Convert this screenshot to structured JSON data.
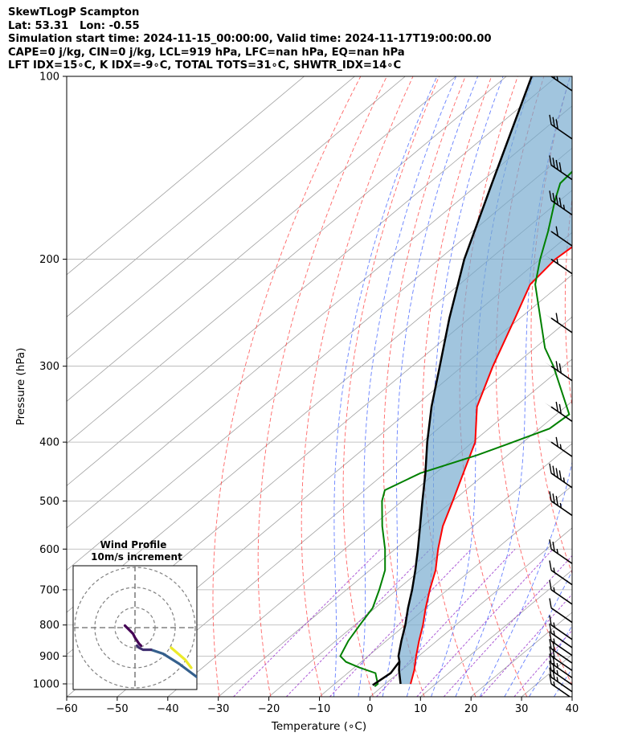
{
  "header": {
    "line1": "SkewTLogP Scampton",
    "line2": "Lat: 53.31   Lon: -0.55",
    "line3": "Simulation start time: 2024-11-15_00:00:00, Valid time: 2024-11-17T19:00:00.00",
    "line4": "CAPE=0 j/kg, CIN=0 j/kg, LCL=919 hPa, LFC=nan hPa, EQ=nan hPa",
    "line5": "LFT IDX=15∘C, K IDX=-9∘C, TOTAL TOTS=31∘C, SHWTR_IDX=14∘C"
  },
  "colors": {
    "temperature": "#ff0000",
    "dewpoint": "#008000",
    "parcel": "#000000",
    "cape_fill": "#74a9cf",
    "dry_adiabat": "#ff3333",
    "moist_adiabat": "#3355ff",
    "mixing_ratio": "#9933cc",
    "isotherm": "#a0a0a0",
    "isobar": "#b0b0b0"
  },
  "chart_data": {
    "type": "line",
    "title": "",
    "xlabel": "Temperature (∘C)",
    "ylabel": "Pressure (hPa)",
    "xlim": [
      -60,
      40
    ],
    "ylim": [
      1050,
      100
    ],
    "y_scale": "log",
    "x_ticks": [
      -60,
      -50,
      -40,
      -30,
      -20,
      -10,
      0,
      10,
      20,
      30,
      40
    ],
    "y_ticks": [
      1000,
      900,
      800,
      700,
      600,
      500,
      400,
      300,
      200,
      100
    ],
    "grid": true,
    "series": [
      {
        "key": "temperature",
        "points": [
          [
            1000,
            5
          ],
          [
            950,
            2.5
          ],
          [
            900,
            -0.5
          ],
          [
            850,
            -3.5
          ],
          [
            800,
            -6.5
          ],
          [
            750,
            -10
          ],
          [
            700,
            -13.5
          ],
          [
            650,
            -17
          ],
          [
            600,
            -21.5
          ],
          [
            550,
            -26
          ],
          [
            500,
            -30
          ],
          [
            450,
            -34.5
          ],
          [
            400,
            -39.5
          ],
          [
            350,
            -47.5
          ],
          [
            300,
            -54
          ],
          [
            250,
            -61
          ],
          [
            220,
            -66
          ],
          [
            200,
            -67
          ],
          [
            180,
            -66
          ],
          [
            160,
            -64
          ],
          [
            150,
            -64
          ],
          [
            140,
            -63
          ],
          [
            120,
            -60
          ],
          [
            100,
            -57
          ]
        ]
      },
      {
        "key": "dewpoint",
        "points": [
          [
            1010,
            -1.5
          ],
          [
            1000,
            -1.5
          ],
          [
            980,
            -3
          ],
          [
            960,
            -4.5
          ],
          [
            940,
            -9
          ],
          [
            920,
            -13
          ],
          [
            900,
            -15.5
          ],
          [
            850,
            -17.5
          ],
          [
            800,
            -19
          ],
          [
            750,
            -20.5
          ],
          [
            700,
            -23.5
          ],
          [
            650,
            -27
          ],
          [
            600,
            -32
          ],
          [
            550,
            -38
          ],
          [
            500,
            -44
          ],
          [
            480,
            -46
          ],
          [
            450,
            -43
          ],
          [
            420,
            -36
          ],
          [
            400,
            -32
          ],
          [
            380,
            -28
          ],
          [
            360,
            -27.5
          ],
          [
            300,
            -42
          ],
          [
            280,
            -48
          ],
          [
            250,
            -56
          ],
          [
            220,
            -65
          ],
          [
            200,
            -70
          ],
          [
            180,
            -75
          ],
          [
            160,
            -81
          ],
          [
            150,
            -84
          ],
          [
            120,
            -86
          ],
          [
            100,
            -90
          ]
        ]
      },
      {
        "key": "parcel",
        "points": [
          [
            1000,
            3
          ],
          [
            950,
            -0.5
          ],
          [
            919,
            -2.5
          ],
          [
            900,
            -4
          ],
          [
            850,
            -7
          ],
          [
            800,
            -10
          ],
          [
            750,
            -13.5
          ],
          [
            700,
            -17
          ],
          [
            650,
            -21
          ],
          [
            600,
            -25.5
          ],
          [
            550,
            -30.5
          ],
          [
            500,
            -36
          ],
          [
            450,
            -42
          ],
          [
            400,
            -49
          ],
          [
            350,
            -56.5
          ],
          [
            300,
            -64.5
          ],
          [
            250,
            -74
          ],
          [
            200,
            -85
          ],
          [
            150,
            -97.5
          ],
          [
            100,
            -115
          ]
        ],
        "extra_segment": [
          [
            1005,
            -2.2
          ],
          [
            960,
            -1.5
          ],
          [
            919,
            -2.5
          ]
        ]
      }
    ],
    "wind_barbs": [
      {
        "p": 1000,
        "speed_kt": 15
      },
      {
        "p": 975,
        "speed_kt": 25
      },
      {
        "p": 950,
        "speed_kt": 25
      },
      {
        "p": 925,
        "speed_kt": 25
      },
      {
        "p": 900,
        "speed_kt": 20
      },
      {
        "p": 875,
        "speed_kt": 20
      },
      {
        "p": 850,
        "speed_kt": 15
      },
      {
        "p": 825,
        "speed_kt": 15
      },
      {
        "p": 800,
        "speed_kt": 15
      },
      {
        "p": 750,
        "speed_kt": 10
      },
      {
        "p": 700,
        "speed_kt": 15
      },
      {
        "p": 650,
        "speed_kt": 15
      },
      {
        "p": 600,
        "speed_kt": 25
      },
      {
        "p": 500,
        "speed_kt": 35
      },
      {
        "p": 450,
        "speed_kt": 45
      },
      {
        "p": 400,
        "speed_kt": 65
      },
      {
        "p": 350,
        "speed_kt": 70
      },
      {
        "p": 300,
        "speed_kt": 70
      },
      {
        "p": 250,
        "speed_kt": 60
      },
      {
        "p": 200,
        "speed_kt": 55
      },
      {
        "p": 180,
        "speed_kt": 60
      },
      {
        "p": 160,
        "speed_kt": 45
      },
      {
        "p": 140,
        "speed_kt": 40
      },
      {
        "p": 120,
        "speed_kt": 30
      },
      {
        "p": 100,
        "speed_kt": 30
      }
    ]
  },
  "inset": {
    "title_line1": "Wind Profile",
    "title_line2": "10m/s increment",
    "hodograph_segments": [
      {
        "color": "#ecea2a",
        "points": [
          [
            18,
            -10
          ],
          [
            25,
            -16
          ],
          [
            28,
            -20
          ]
        ]
      },
      {
        "color": "#35608d",
        "points": [
          [
            38,
            -30
          ],
          [
            30,
            -24
          ],
          [
            22,
            -18
          ],
          [
            14,
            -13
          ],
          [
            8,
            -11
          ]
        ]
      },
      {
        "color": "#3f2f70",
        "points": [
          [
            8,
            -11
          ],
          [
            4,
            -11
          ],
          [
            2,
            -10
          ],
          [
            1,
            -9
          ]
        ]
      },
      {
        "color": "#440154",
        "points": [
          [
            3,
            -9
          ],
          [
            2,
            -8
          ],
          [
            0,
            -5
          ],
          [
            -1,
            -3
          ],
          [
            -3,
            -1
          ],
          [
            -4,
            0
          ],
          [
            -5,
            1
          ]
        ]
      }
    ]
  }
}
